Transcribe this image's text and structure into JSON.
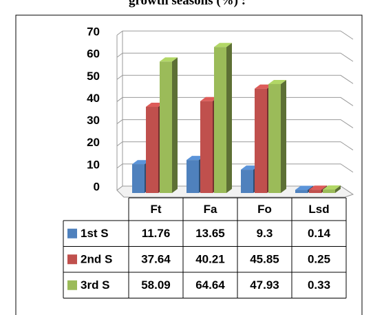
{
  "chart_data": {
    "type": "bar3d",
    "title": "growth seasons (%) :",
    "categories": [
      "Ft",
      "Fa",
      "Fo",
      "Lsd"
    ],
    "series": [
      {
        "name": "1st S",
        "color": "#4f81bd",
        "values": [
          11.76,
          13.65,
          9.3,
          0.14
        ]
      },
      {
        "name": "2nd S",
        "color": "#c0504d",
        "values": [
          37.64,
          40.21,
          45.85,
          0.25
        ]
      },
      {
        "name": "3rd S",
        "color": "#9bbb59",
        "values": [
          58.09,
          64.64,
          47.93,
          0.33
        ]
      }
    ],
    "ylim": [
      0,
      70
    ],
    "yticks": [
      0,
      10,
      20,
      30,
      40,
      50,
      60,
      70
    ],
    "grid": true,
    "data_table": true
  }
}
